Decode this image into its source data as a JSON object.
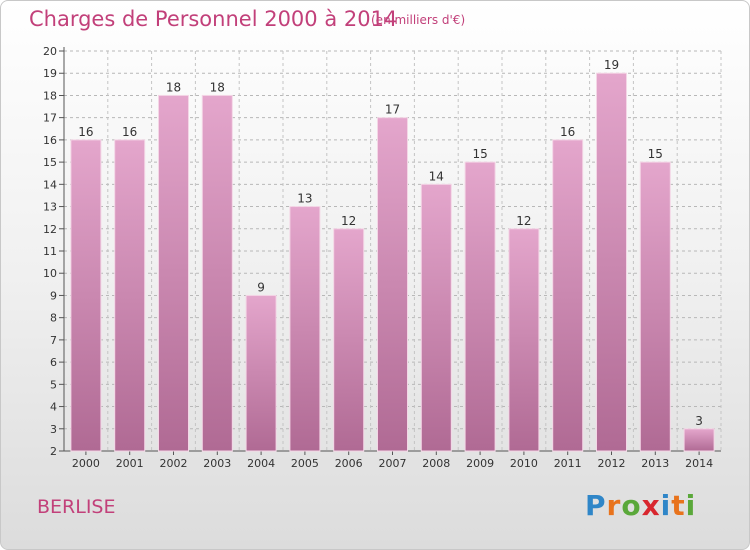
{
  "header": {
    "title": "Charges de Personnel 2000 à 2014",
    "unit": "(en milliers d'€)"
  },
  "footer": {
    "commune": "BERLISE",
    "logo": [
      "P",
      "r",
      "o",
      "x",
      "i",
      "t",
      "i"
    ],
    "logo_colors": [
      "#2f86c8",
      "#e8731c",
      "#5aa83a",
      "#d8262e",
      "#2f86c8",
      "#e8731c",
      "#5aa83a"
    ]
  },
  "chart_data": {
    "type": "bar",
    "title": "Charges de Personnel 2000 à 2014",
    "subtitle": "(en milliers d'€)",
    "categories": [
      "2000",
      "2001",
      "2002",
      "2003",
      "2004",
      "2005",
      "2006",
      "2007",
      "2008",
      "2009",
      "2010",
      "2011",
      "2012",
      "2013",
      "2014"
    ],
    "values": [
      16,
      16,
      18,
      18,
      9,
      13,
      12,
      17,
      14,
      15,
      12,
      16,
      19,
      15,
      3
    ],
    "ylim": [
      2,
      20
    ],
    "yticks": [
      2,
      3,
      4,
      5,
      6,
      7,
      8,
      9,
      10,
      11,
      12,
      13,
      14,
      15,
      16,
      17,
      18,
      19,
      20
    ],
    "bar_color_top": "#e4a6cc",
    "bar_color_bottom": "#b06a94",
    "grid": true,
    "legend": "none"
  }
}
